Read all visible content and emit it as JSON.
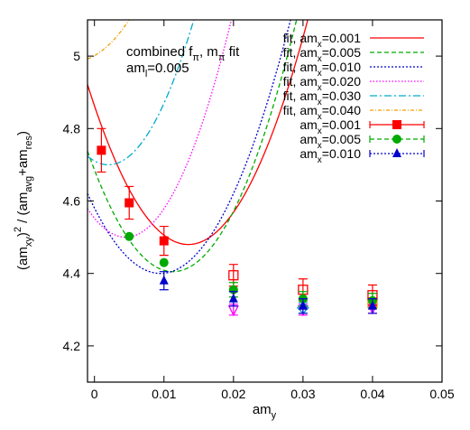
{
  "chart_data": {
    "type": "line",
    "xlim": [
      -0.001,
      0.05
    ],
    "ylim": [
      4.1,
      5.1
    ],
    "x_ticks": [
      {
        "value": 0,
        "label": "0"
      },
      {
        "value": 0.01,
        "label": "0.01"
      },
      {
        "value": 0.02,
        "label": "0.02"
      },
      {
        "value": 0.03,
        "label": "0.03"
      },
      {
        "value": 0.04,
        "label": "0.04"
      },
      {
        "value": 0.05,
        "label": "0.05"
      }
    ],
    "y_ticks": [
      {
        "value": 4.2,
        "label": "4.2"
      },
      {
        "value": 4.4,
        "label": "4.4"
      },
      {
        "value": 4.6,
        "label": "4.6"
      },
      {
        "value": 4.8,
        "label": "4.8"
      },
      {
        "value": 5.0,
        "label": "5"
      }
    ],
    "xlabel": {
      "base": "am",
      "sub": "y"
    },
    "ylabel": {
      "p1": "(am",
      "s1": "xy",
      "p2": ")",
      "sup": "2",
      "p3": " / (am",
      "s2": "avg",
      "p4": "+am",
      "s3": "res",
      "p5": ")"
    },
    "annotation": {
      "line1_base": "combined f",
      "line1_sub1": "π",
      "line1_mid": ", m",
      "line1_sub2": "π",
      "line1_end": " fit",
      "line2_base": "am",
      "line2_sub": "l",
      "line2_end": "=0.005"
    },
    "fits": [
      {
        "name_prefix": "fit, am",
        "name_sub": "x",
        "name_value": "=0.001",
        "color": "#ff0000",
        "dash": "",
        "a": 4.48,
        "b": 0.0135,
        "c": 2100,
        "xrange": [
          -0.001,
          0.05
        ]
      },
      {
        "name_prefix": "fit, am",
        "name_sub": "x",
        "name_value": "=0.005",
        "color": "#00aa00",
        "dash": "5,3",
        "a": 4.405,
        "b": 0.0113,
        "c": 2200,
        "xrange": [
          -0.001,
          0.05
        ]
      },
      {
        "name_prefix": "fit, am",
        "name_sub": "x",
        "name_value": "=0.010",
        "color": "#0000cc",
        "dash": "2,2",
        "a": 4.4,
        "b": 0.0095,
        "c": 2000,
        "xrange": [
          -0.001,
          0.05
        ]
      },
      {
        "name_prefix": "fit, am",
        "name_sub": "x",
        "name_value": "=0.020",
        "color": "#ff00ff",
        "dash": "1.5,2",
        "a": 4.5,
        "b": 0.0045,
        "c": 2600,
        "xrange": [
          -0.001,
          0.05
        ]
      },
      {
        "name_prefix": "fit, am",
        "name_sub": "x",
        "name_value": "=0.030",
        "color": "#00aacc",
        "dash": "8,3,2,3",
        "a": 4.7,
        "b": 0.002,
        "c": 2650,
        "xrange": [
          -0.001,
          0.05
        ]
      },
      {
        "name_prefix": "fit, am",
        "name_sub": "x",
        "name_value": "=0.040",
        "color": "#f0a000",
        "dash": "4,2,1,2",
        "a": 4.985,
        "b": -0.003,
        "c": 1800,
        "xrange": [
          -0.001,
          0.05
        ]
      }
    ],
    "series": [
      {
        "name_prefix": "am",
        "name_sub": "x",
        "name_value": "=0.001",
        "color": "#ff0000",
        "dash": "",
        "marker": "square",
        "fit_points": [
          {
            "x": 0.001,
            "y": 4.74,
            "err": 0.06
          },
          {
            "x": 0.005,
            "y": 4.595,
            "err": 0.045
          },
          {
            "x": 0.01,
            "y": 4.49,
            "err": 0.04
          }
        ],
        "other_points": [
          {
            "x": 0.02,
            "y": 4.395,
            "err": 0.03
          },
          {
            "x": 0.03,
            "y": 4.355,
            "err": 0.03
          },
          {
            "x": 0.04,
            "y": 4.34,
            "err": 0.028
          }
        ]
      },
      {
        "name_prefix": "am",
        "name_sub": "x",
        "name_value": "=0.005",
        "color": "#00aa00",
        "dash": "5,3",
        "marker": "circle",
        "fit_points": [
          {
            "x": 0.005,
            "y": 4.502,
            "err": 0.0
          },
          {
            "x": 0.01,
            "y": 4.43,
            "err": 0.0
          }
        ],
        "other_points": [
          {
            "x": 0.02,
            "y": 4.355,
            "err": 0.02
          },
          {
            "x": 0.03,
            "y": 4.33,
            "err": 0.02
          },
          {
            "x": 0.04,
            "y": 4.325,
            "err": 0.02
          }
        ]
      },
      {
        "name_prefix": "am",
        "name_sub": "x",
        "name_value": "=0.010",
        "color": "#0000cc",
        "dash": "2,2",
        "marker": "triangle",
        "fit_points": [
          {
            "x": 0.01,
            "y": 4.38,
            "err": 0.025
          }
        ],
        "other_points": [
          {
            "x": 0.02,
            "y": 4.33,
            "err": 0.02
          },
          {
            "x": 0.03,
            "y": 4.31,
            "err": 0.02
          },
          {
            "x": 0.04,
            "y": 4.31,
            "err": 0.02
          }
        ]
      }
    ],
    "extra_points": [
      {
        "x": 0.02,
        "y": 4.3,
        "err": 0.015,
        "color": "#ff00ff",
        "marker": "triangle-down-open"
      },
      {
        "x": 0.03,
        "y": 4.3,
        "err": 0.015,
        "color": "#ff00ff",
        "marker": "triangle-down-open"
      },
      {
        "x": 0.03,
        "y": 4.305,
        "err": 0.015,
        "color": "#00aacc",
        "marker": "diamond-open"
      },
      {
        "x": 0.04,
        "y": 4.305,
        "err": 0.015,
        "color": "#ff00ff",
        "marker": "triangle-down-open"
      },
      {
        "x": 0.04,
        "y": 4.318,
        "err": 0.015,
        "color": "#f0a000",
        "marker": "square-open"
      }
    ],
    "legend_position": "top-right",
    "grid": false
  }
}
